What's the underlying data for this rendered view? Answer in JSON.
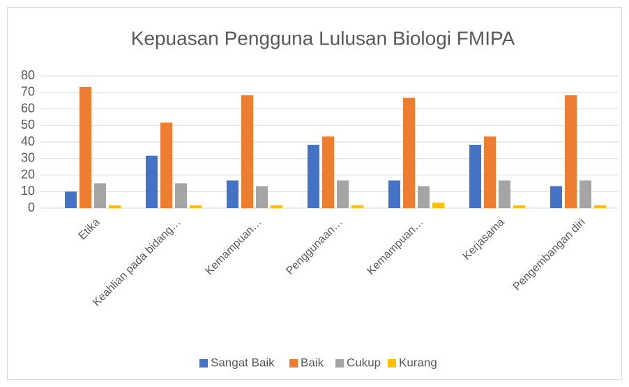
{
  "chart_data": {
    "type": "bar",
    "title": "Kepuasan Pengguna Lulusan Biologi FMIPA",
    "categories": [
      "Etika",
      "Keahlian pada bidang…",
      "Kemampuan…",
      "Penggunaan…",
      "Kemampuan…",
      "Kerjasama",
      "Pengembangan diri"
    ],
    "series": [
      {
        "name": "Sangat Baik",
        "color": "#4472c4",
        "values": [
          10,
          31.7,
          16.7,
          38.3,
          16.7,
          38.3,
          13.3
        ]
      },
      {
        "name": "Baik",
        "color": "#ed7d31",
        "values": [
          73.3,
          51.7,
          68.3,
          43.3,
          66.7,
          43.3,
          68.3
        ]
      },
      {
        "name": "Cukup",
        "color": "#a5a5a5",
        "values": [
          15,
          15,
          13.3,
          16.7,
          13.3,
          16.7,
          16.7
        ]
      },
      {
        "name": "Kurang",
        "color": "#ffc000",
        "values": [
          1.7,
          1.7,
          1.7,
          1.7,
          3.3,
          1.7,
          1.7
        ]
      }
    ],
    "ylim": [
      0,
      80
    ],
    "yticks": [
      0,
      10,
      20,
      30,
      40,
      50,
      60,
      70,
      80
    ],
    "grid": true,
    "legend": "bottom"
  }
}
